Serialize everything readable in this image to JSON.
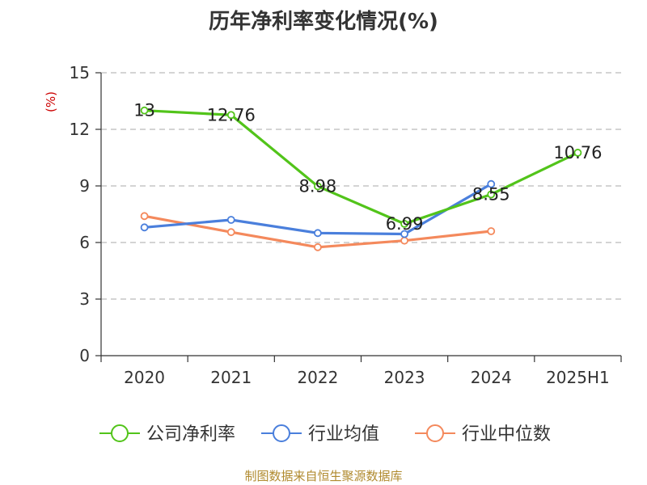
{
  "chart_data": {
    "type": "line",
    "title": "历年净利率变化情况(%)",
    "ylabel": "(%)",
    "categories": [
      "2020",
      "2021",
      "2022",
      "2023",
      "2024",
      "2025H1"
    ],
    "ylim": [
      0,
      15
    ],
    "yticks": [
      0,
      3,
      6,
      9,
      12,
      15
    ],
    "grid": true,
    "legend_position": "bottom",
    "series": [
      {
        "name": "公司净利率",
        "color": "#52c41a",
        "values": [
          13,
          12.76,
          8.98,
          6.99,
          8.55,
          10.76
        ],
        "data_labels": [
          "13",
          "12.76",
          "8.98",
          "6.99",
          "8.55",
          "10.76"
        ]
      },
      {
        "name": "行业均值",
        "color": "#4a7fdc",
        "values": [
          6.8,
          7.2,
          6.5,
          6.45,
          9.1,
          null
        ]
      },
      {
        "name": "行业中位数",
        "color": "#f4895c",
        "values": [
          7.4,
          6.55,
          5.75,
          6.1,
          6.6,
          null
        ]
      }
    ]
  },
  "source_note": "制图数据来自恒生聚源数据库"
}
